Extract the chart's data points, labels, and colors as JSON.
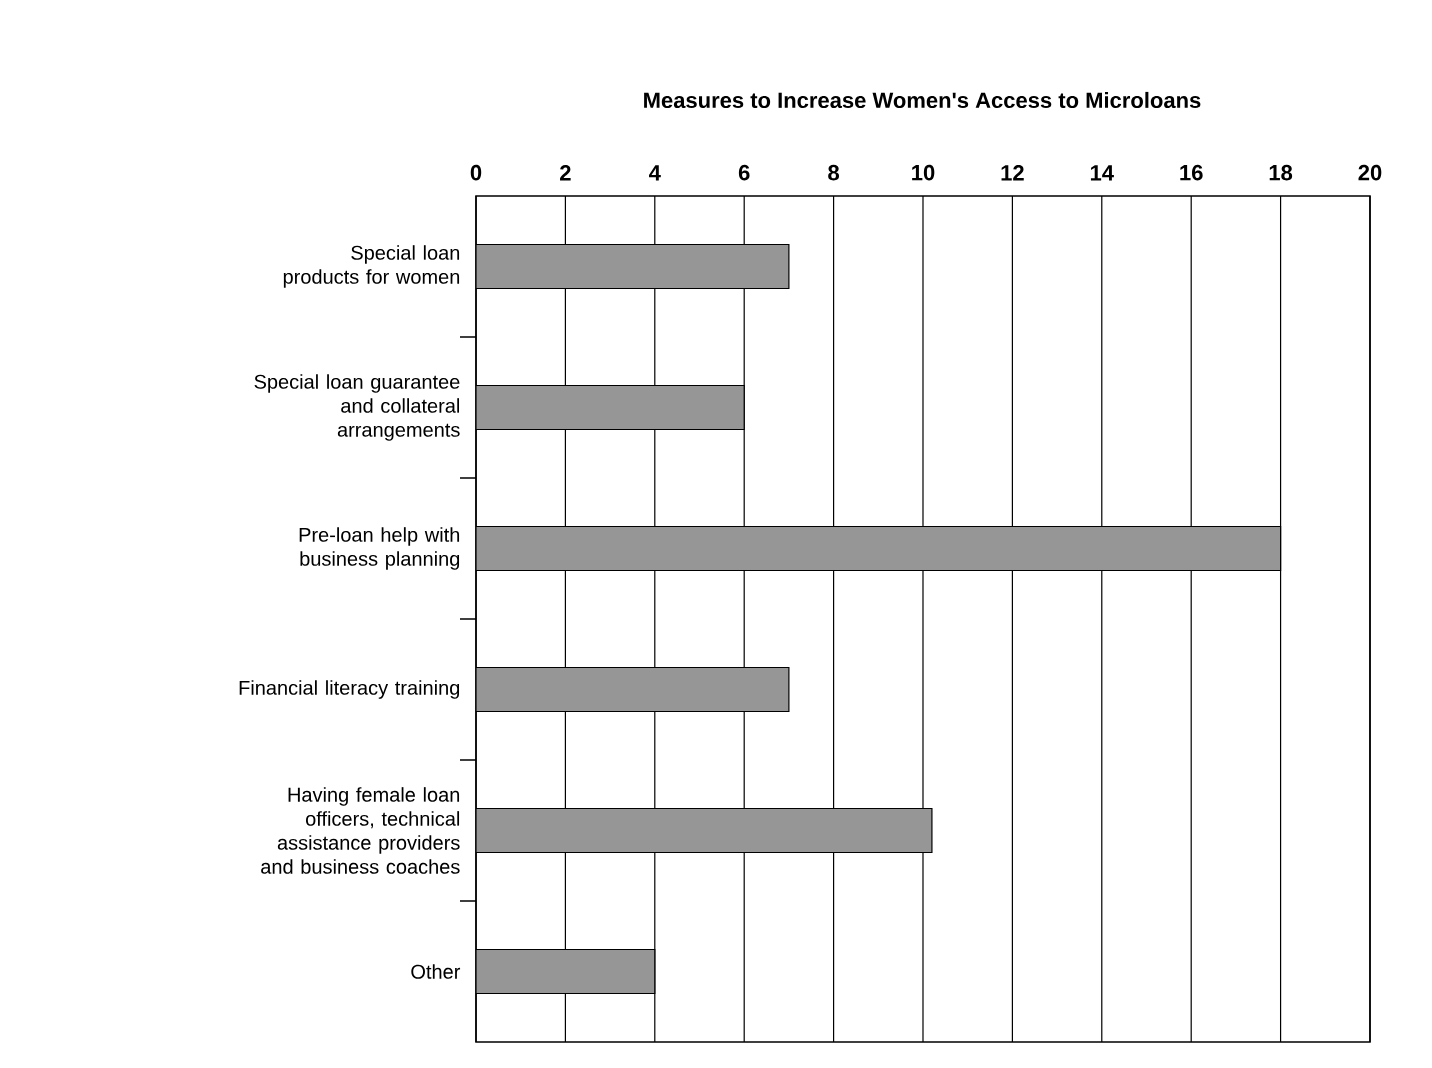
{
  "chart_data": {
    "type": "bar",
    "orientation": "horizontal",
    "title": "Measures to Increase Women's Access to Microloans",
    "categories": [
      "Special loan products for women",
      "Special loan guarantee and collateral arrangements",
      "Pre-loan help with business planning",
      "Financial literacy training",
      "Having female loan officers, technical assistance providers and business coaches",
      "Other"
    ],
    "values": [
      7,
      6,
      18,
      7,
      10.2,
      4
    ],
    "color": "#969696",
    "xlim": [
      0,
      20
    ],
    "xticks": [
      0,
      2,
      4,
      6,
      8,
      10,
      12,
      14,
      16,
      18,
      20
    ],
    "grid": "x"
  }
}
